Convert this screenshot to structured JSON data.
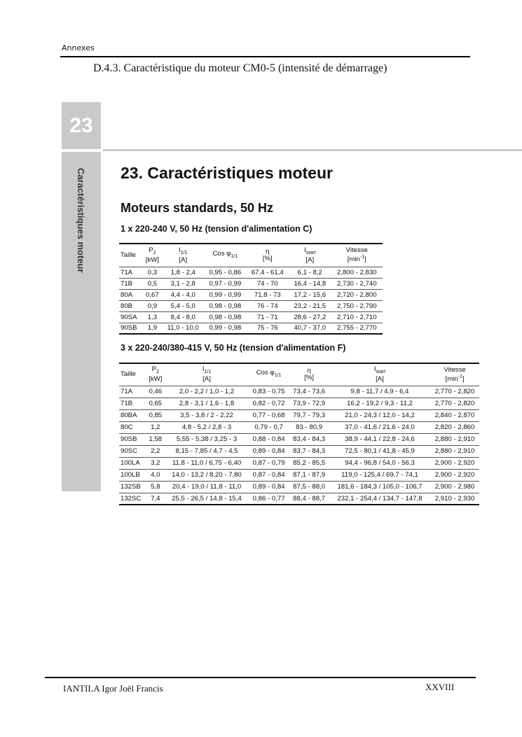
{
  "header": {
    "text": "Annexes"
  },
  "section_title": "D.4.3. Caractéristique du moteur CM0-5 (intensité de démarrage)",
  "chapter": {
    "number": "23",
    "side_label": "Caractéristiques moteur"
  },
  "heading1": "23. Caractéristiques moteur",
  "heading2": "Moteurs standards, 50 Hz",
  "headers": {
    "taille": "Taille",
    "p2": "P",
    "p2_sub": "2",
    "kw": "[kW]",
    "i": "I",
    "i_sub": "1/1",
    "a": "[A]",
    "cos": "Cos φ",
    "cos_sub": "1/1",
    "eta": "η",
    "pct": "[%]",
    "istart": "I",
    "istart_sub": "start",
    "vit": "Vitesse",
    "min": "[min",
    "min_sup": "-1",
    "close": "]"
  },
  "table1": {
    "caption": "1 x 220-240 V, 50 Hz (tension d'alimentation C)",
    "rows": [
      [
        "71A",
        "0,3",
        "1,8 - 2,4",
        "0,95 - 0,86",
        "67,4 - 61,4",
        "6,1 - 8,2",
        "2,800 - 2,830"
      ],
      [
        "71B",
        "0,5",
        "3,1 - 2,8",
        "0,97 - 0,99",
        "74 - 70",
        "16,4 - 14,8",
        "2,730 - 2,740"
      ],
      [
        "80A",
        "0,67",
        "4,4 - 4,0",
        "0,99 - 0,99",
        "71,8 - 73",
        "17,2 - 15,6",
        "2,720 - 2,800"
      ],
      [
        "80B",
        "0,9",
        "5,4 - 5,0",
        "0,98 - 0,98",
        "76 - 74",
        "23,2 - 21,5",
        "2,750 - 2,790"
      ],
      [
        "90SA",
        "1,3",
        "8,4 - 8,0",
        "0,98 - 0,98",
        "71 - 71",
        "28,6 - 27,2",
        "2,710 - 2,710"
      ],
      [
        "90SB",
        "1,9",
        "11,0 - 10,0",
        "0,99 - 0,98",
        "75 - 76",
        "40,7 - 37,0",
        "2,755 - 2,770"
      ]
    ]
  },
  "table2": {
    "caption": "3 x 220-240/380-415 V, 50 Hz (tension d'alimentation F)",
    "rows": [
      [
        "71A",
        "0,46",
        "2,0 - 2,2 / 1,0 - 1,2",
        "0,83 - 0,75",
        "73,4 - 73,6",
        "9,8 - 11,7 / 4,9 - 6,4",
        "2,770 - 2,820"
      ],
      [
        "71B",
        "0,65",
        "2,8 - 3,1 / 1,6 - 1,8",
        "0,82 - 0,72",
        "73,9 - 72,9",
        "16,2 - 19,2 / 9,3 - 11,2",
        "2,770 - 2,820"
      ],
      [
        "80BA",
        "0,85",
        "3,5 - 3,8 / 2 - 2,22",
        "0,77 - 0,68",
        "79,7 - 79,3",
        "21,0 - 24,3 / 12,0 - 14,2",
        "2,840 - 2,870"
      ],
      [
        "80C",
        "1,2",
        "4,8 - 5,2 / 2,8 - 3",
        "0,79 - 0,7",
        "83 - 80,9",
        "37,0 - 41,6 / 21,6 - 24,0",
        "2,820 - 2,860"
      ],
      [
        "90SB",
        "1,58",
        "5,55 - 5,38 / 3,25 - 3",
        "0,88 - 0,84",
        "83,4 - 84,3",
        "38,9 - 44,1 / 22,8 - 24,6",
        "2,880 - 2,910"
      ],
      [
        "90SC",
        "2,2",
        "8,15 - 7,85 / 4,7 - 4,5",
        "0,89 - 0,84",
        "83,7 - 84,3",
        "72,5 - 80,1 / 41,8 - 45,9",
        "2,880 - 2,910"
      ],
      [
        "100LA",
        "3,2",
        "11,8 - 11,0 / 6,75 - 6,40",
        "0,87 - 0,79",
        "85,2 - 85,5",
        "94,4 - 96,8 / 54,0 - 56,3",
        "2,900 - 2,920"
      ],
      [
        "100LB",
        "4,0",
        "14,0 - 13,2 / 8,20 - 7,80",
        "0,87 - 0,84",
        "87,1 - 87,9",
        "119,0 - 125,4 / 69,7 - 74,1",
        "2,900 - 2,920"
      ],
      [
        "132SB",
        "5,8",
        "20,4 - 19,0 / 11,8 - 11,0",
        "0,89 - 0,84",
        "87,5 - 88,0",
        "181,6 - 184,3 / 105,0 - 106,7",
        "2,900 - 2,980"
      ],
      [
        "132SC",
        "7,4",
        "25,5 - 26,5 / 14,8 - 15,4",
        "0,86 - 0,77",
        "88,4 - 88,7",
        "232,1 - 254,4 / 134,7 - 147,8",
        "2,910 - 2,930"
      ]
    ]
  },
  "footer": {
    "author": "IANTILA Igor Joël Francis",
    "page": "XXVIII"
  }
}
